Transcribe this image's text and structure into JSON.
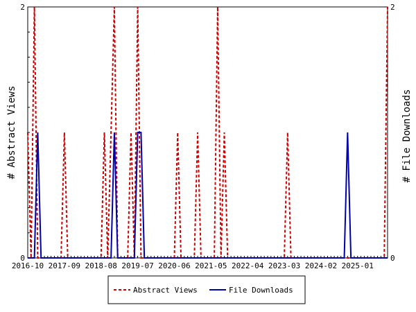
{
  "chart_data": {
    "type": "line",
    "x_start": "2016-10",
    "x_end": "2025-10",
    "categories": [
      "2016-10",
      "2016-11",
      "2016-12",
      "2017-01",
      "2017-02",
      "2017-03",
      "2017-04",
      "2017-05",
      "2017-06",
      "2017-07",
      "2017-08",
      "2017-09",
      "2017-10",
      "2017-11",
      "2017-12",
      "2018-01",
      "2018-02",
      "2018-03",
      "2018-04",
      "2018-05",
      "2018-06",
      "2018-07",
      "2018-08",
      "2018-09",
      "2018-10",
      "2018-11",
      "2018-12",
      "2019-01",
      "2019-02",
      "2019-03",
      "2019-04",
      "2019-05",
      "2019-06",
      "2019-07",
      "2019-08",
      "2019-09",
      "2019-10",
      "2019-11",
      "2019-12",
      "2020-01",
      "2020-02",
      "2020-03",
      "2020-04",
      "2020-05",
      "2020-06",
      "2020-07",
      "2020-08",
      "2020-09",
      "2020-10",
      "2020-11",
      "2020-12",
      "2021-01",
      "2021-02",
      "2021-03",
      "2021-04",
      "2021-05",
      "2021-06",
      "2021-07",
      "2021-08",
      "2021-09",
      "2021-10",
      "2021-11",
      "2021-12",
      "2022-01",
      "2022-02",
      "2022-03",
      "2022-04",
      "2022-05",
      "2022-06",
      "2022-07",
      "2022-08",
      "2022-09",
      "2022-10",
      "2022-11",
      "2022-12",
      "2023-01",
      "2023-02",
      "2023-03",
      "2023-04",
      "2023-05",
      "2023-06",
      "2023-07",
      "2023-08",
      "2023-09",
      "2023-10",
      "2023-11",
      "2023-12",
      "2024-01",
      "2024-02",
      "2024-03",
      "2024-04",
      "2024-05",
      "2024-06",
      "2024-07",
      "2024-08",
      "2024-09",
      "2024-10",
      "2024-11",
      "2024-12",
      "2025-01",
      "2025-02",
      "2025-03",
      "2025-04",
      "2025-05",
      "2025-06",
      "2025-07",
      "2025-08",
      "2025-09",
      "2025-10"
    ],
    "x_tick_labels": [
      "2016-10",
      "2017-09",
      "2018-08",
      "2019-07",
      "2020-06",
      "2021-05",
      "2022-04",
      "2023-03",
      "2024-02",
      "2025-01"
    ],
    "y_left": {
      "label": "# Abstract Views",
      "ylim": [
        0,
        2
      ],
      "ticks": [
        "0",
        "2"
      ]
    },
    "y_right": {
      "label": "# File Downloads",
      "ylim": [
        0,
        2
      ],
      "ticks": [
        "0",
        "2"
      ]
    },
    "series": [
      {
        "name": "Abstract Views",
        "axis": "left",
        "color": "#cc0000",
        "style": "dashed",
        "values": [
          1,
          0,
          2,
          0,
          0,
          0,
          0,
          0,
          0,
          0,
          0,
          1,
          0,
          0,
          0,
          0,
          0,
          0,
          0,
          0,
          0,
          0,
          0,
          1,
          0,
          1,
          2,
          0,
          0,
          0,
          0,
          1,
          0,
          2,
          0,
          0,
          0,
          0,
          0,
          0,
          0,
          0,
          0,
          0,
          0,
          1,
          0,
          0,
          0,
          0,
          0,
          1,
          0,
          0,
          0,
          0,
          0,
          2,
          0,
          1,
          0,
          0,
          0,
          0,
          0,
          0,
          0,
          0,
          0,
          0,
          0,
          0,
          0,
          0,
          0,
          0,
          0,
          0,
          1,
          0,
          0,
          0,
          0,
          0,
          0,
          0,
          0,
          0,
          0,
          0,
          0,
          0,
          0,
          0,
          0,
          0,
          0,
          0,
          0,
          0,
          0,
          0,
          0,
          0,
          0,
          0,
          0,
          0,
          2
        ]
      },
      {
        "name": "File Downloads",
        "axis": "right",
        "color": "#0000aa",
        "style": "solid",
        "values": [
          0,
          0,
          0,
          1,
          0,
          0,
          0,
          0,
          0,
          0,
          0,
          0,
          0,
          0,
          0,
          0,
          0,
          0,
          0,
          0,
          0,
          0,
          0,
          0,
          0,
          0,
          1,
          0,
          0,
          0,
          0,
          0,
          0,
          1,
          1,
          0,
          0,
          0,
          0,
          0,
          0,
          0,
          0,
          0,
          0,
          0,
          0,
          0,
          0,
          0,
          0,
          0,
          0,
          0,
          0,
          0,
          0,
          0,
          0,
          0,
          0,
          0,
          0,
          0,
          0,
          0,
          0,
          0,
          0,
          0,
          0,
          0,
          0,
          0,
          0,
          0,
          0,
          0,
          0,
          0,
          0,
          0,
          0,
          0,
          0,
          0,
          0,
          0,
          0,
          0,
          0,
          0,
          0,
          0,
          0,
          0,
          1,
          0,
          0,
          0,
          0,
          0,
          0,
          0,
          0,
          0,
          0,
          0,
          0
        ]
      }
    ],
    "legend": {
      "placement": "bottom-center",
      "entries": [
        "Abstract Views",
        "File Downloads"
      ]
    },
    "grid": false
  }
}
